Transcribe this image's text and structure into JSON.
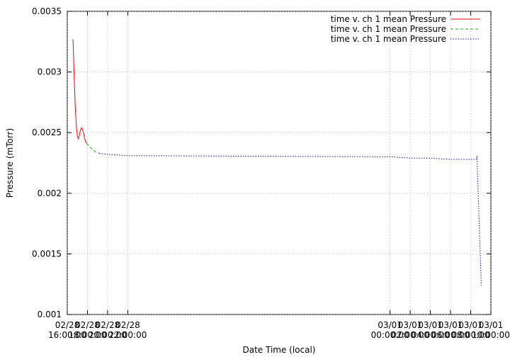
{
  "chart_data": {
    "type": "line",
    "xlabel": "Date Time (local)",
    "ylabel": "Pressure (mTorr)",
    "xlim": [
      "02/28 16:00:00",
      "03/01 10:00:00"
    ],
    "xticks": [
      {
        "date": "02/28",
        "time": "16:00:00"
      },
      {
        "date": "02/28",
        "time": "18:00:00"
      },
      {
        "date": "02/28",
        "time": "20:00:00"
      },
      {
        "date": "02/28",
        "time": "22:00:00"
      },
      {
        "date": "03/01",
        "time": "00:00:00"
      },
      {
        "date": "03/01",
        "time": "02:00:00"
      },
      {
        "date": "03/01",
        "time": "04:00:00"
      },
      {
        "date": "03/01",
        "time": "06:00:00"
      },
      {
        "date": "03/01",
        "time": "08:00:00"
      },
      {
        "date": "03/01",
        "time": "10:00:00"
      }
    ],
    "ylim": [
      0.001,
      0.0035
    ],
    "yticks": [
      0.001,
      0.0015,
      0.002,
      0.0025,
      0.003,
      0.0035
    ],
    "grid": true,
    "legend": "upper right",
    "series": [
      {
        "name": "time v. ch 1 mean Pressure",
        "color": "#ff0000",
        "dash": "solid",
        "x": [
          "02/28 16:34:00",
          "02/28 16:40:00",
          "02/28 16:47:00",
          "02/28 16:54:00",
          "02/28 17:00:00",
          "02/28 17:06:00",
          "02/28 17:12:00",
          "02/28 17:18:00",
          "02/28 17:24:00",
          "02/28 17:30:00",
          "02/28 17:36:00",
          "02/28 17:42:00",
          "02/28 17:48:00",
          "02/28 17:55:00"
        ],
        "values": [
          0.00327,
          0.003,
          0.00272,
          0.00255,
          0.00247,
          0.00245,
          0.00248,
          0.00252,
          0.00254,
          0.00253,
          0.0025,
          0.00246,
          0.00243,
          0.00241
        ]
      },
      {
        "name": "time v. ch 1 mean Pressure",
        "color": "#00c000",
        "dash": "dashed",
        "x": [
          "02/28 17:55:00",
          "02/28 18:10:00",
          "02/28 18:30:00",
          "02/28 18:50:00",
          "02/28 19:10:00"
        ],
        "values": [
          0.00241,
          0.00239,
          0.00236,
          0.00234,
          0.00233
        ]
      },
      {
        "name": "time v. ch 1 mean Pressure",
        "color": "#0000ff",
        "dash": "dotted",
        "x": [
          "02/28 19:10:00",
          "02/28 20:00:00",
          "02/28 22:00:00",
          "03/01 00:00:00",
          "03/01 02:00:00",
          "03/01 04:00:00",
          "03/01 06:00:00",
          "03/01 08:00:00",
          "03/01 08:36:00",
          "03/01 08:37:00",
          "03/01 09:03:00"
        ],
        "values": [
          0.00233,
          0.00232,
          0.00231,
          0.0023,
          0.00229,
          0.00229,
          0.00228,
          0.00228,
          0.00228,
          0.00231,
          0.00124
        ]
      }
    ]
  }
}
